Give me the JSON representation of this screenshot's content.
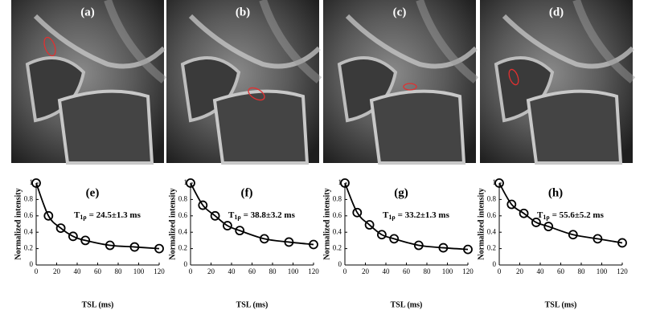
{
  "images": [
    {
      "label": "(a)"
    },
    {
      "label": "(b)"
    },
    {
      "label": "(c)"
    },
    {
      "label": "(d)"
    }
  ],
  "chart_data": [
    {
      "type": "scatter",
      "label": "(e)",
      "annotation": {
        "symbol": "T",
        "subscript": "1ρ",
        "text": "= 24.5±1.3 ms"
      },
      "xlabel": "TSL (ms)",
      "ylabel": "Normalized intensity",
      "x": [
        0,
        12,
        24,
        36,
        48,
        72,
        96,
        120
      ],
      "series": [
        {
          "values": [
            1,
            0.6,
            0.45,
            0.35,
            0.3,
            0.24,
            0.22,
            0.2
          ]
        }
      ],
      "xlim": [
        0,
        120
      ],
      "ylim": [
        0,
        1
      ],
      "xticks": [
        0,
        20,
        40,
        60,
        80,
        100,
        120
      ],
      "yticks": [
        0,
        0.2,
        0.4,
        0.6,
        0.8,
        1
      ],
      "color": "#000000"
    },
    {
      "type": "scatter",
      "label": "(f)",
      "annotation": {
        "symbol": "T",
        "subscript": "1ρ",
        "text": "= 38.8±3.2 ms"
      },
      "xlabel": "TSL (ms)",
      "ylabel": "Normalized intensity",
      "x": [
        0,
        12,
        24,
        36,
        48,
        72,
        96,
        120
      ],
      "series": [
        {
          "values": [
            1,
            0.73,
            0.6,
            0.48,
            0.42,
            0.32,
            0.28,
            0.25
          ]
        }
      ],
      "xlim": [
        0,
        120
      ],
      "ylim": [
        0,
        1
      ],
      "xticks": [
        0,
        20,
        40,
        60,
        80,
        100,
        120
      ],
      "yticks": [
        0,
        0.2,
        0.4,
        0.6,
        0.8,
        1
      ],
      "color": "#000000"
    },
    {
      "type": "scatter",
      "label": "(g)",
      "annotation": {
        "symbol": "T",
        "subscript": "1ρ",
        "text": "= 33.2±1.3 ms"
      },
      "xlabel": "TSL (ms)",
      "ylabel": "Normalized intensity",
      "x": [
        0,
        12,
        24,
        36,
        48,
        72,
        96,
        120
      ],
      "series": [
        {
          "values": [
            1,
            0.64,
            0.49,
            0.37,
            0.32,
            0.24,
            0.21,
            0.19
          ]
        }
      ],
      "xlim": [
        0,
        120
      ],
      "ylim": [
        0,
        1
      ],
      "xticks": [
        0,
        20,
        40,
        60,
        80,
        100,
        120
      ],
      "yticks": [
        0,
        0.2,
        0.4,
        0.6,
        0.8,
        1
      ],
      "color": "#000000"
    },
    {
      "type": "scatter",
      "label": "(h)",
      "annotation": {
        "symbol": "T",
        "subscript": "1ρ",
        "text": "= 55.6±5.2 ms"
      },
      "xlabel": "TSL (ms)",
      "ylabel": "Normalized intensity",
      "x": [
        0,
        12,
        24,
        36,
        48,
        72,
        96,
        120
      ],
      "series": [
        {
          "values": [
            1,
            0.74,
            0.63,
            0.52,
            0.47,
            0.37,
            0.32,
            0.27
          ]
        }
      ],
      "xlim": [
        0,
        120
      ],
      "ylim": [
        0,
        1
      ],
      "xticks": [
        0,
        20,
        40,
        60,
        80,
        100,
        120
      ],
      "yticks": [
        0,
        0.2,
        0.4,
        0.6,
        0.8,
        1
      ],
      "color": "#000000"
    }
  ]
}
